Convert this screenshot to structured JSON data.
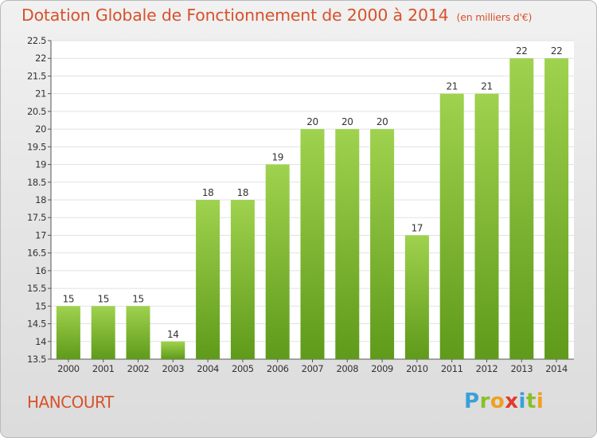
{
  "title": "Dotation Globale de Fonctionnement de 2000 à 2014",
  "subtitle": "(en milliers d'€)",
  "commune": "HANCOURT",
  "logo": {
    "letters": [
      "P",
      "r",
      "o",
      "x",
      "i",
      "t",
      "i"
    ],
    "colors": [
      "#3aa0d8",
      "#8bbf2a",
      "#f0a020",
      "#e23a2a",
      "#3aa0d8",
      "#8bbf2a",
      "#f0a020"
    ]
  },
  "chart_data": {
    "type": "bar",
    "categories": [
      "2000",
      "2001",
      "2002",
      "2003",
      "2004",
      "2005",
      "2006",
      "2007",
      "2008",
      "2009",
      "2010",
      "2011",
      "2012",
      "2013",
      "2014"
    ],
    "values": [
      15,
      15,
      15,
      14,
      18,
      18,
      19,
      20,
      20,
      20,
      17,
      21,
      21,
      22,
      22
    ],
    "data_labels": [
      "15",
      "15",
      "15",
      "14",
      "18",
      "18",
      "19",
      "20",
      "20",
      "20",
      "17",
      "21",
      "21",
      "22",
      "22"
    ],
    "ylim": [
      13.5,
      22.5
    ],
    "yticks": [
      "13.5",
      "14",
      "14.5",
      "15",
      "15.5",
      "16",
      "16.5",
      "17",
      "17.5",
      "18",
      "18.5",
      "19",
      "19.5",
      "20",
      "20.5",
      "21",
      "21.5",
      "22",
      "22.5"
    ],
    "grid": true,
    "bar_color_top": "#9fd24e",
    "bar_color_bottom": "#5f9a1a"
  }
}
